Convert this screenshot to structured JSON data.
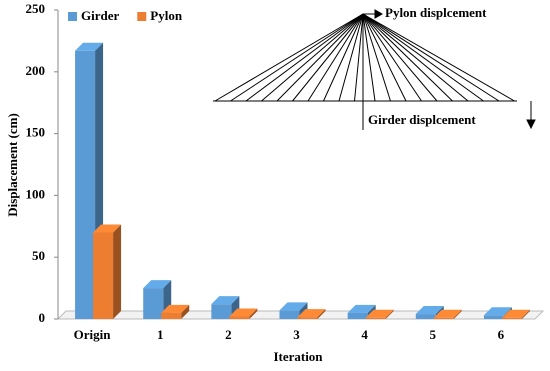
{
  "chart_data": {
    "type": "bar3d",
    "ylabel": "Displacement (cm)",
    "xlabel": "Iteration",
    "categories": [
      "Origin",
      "1",
      "2",
      "3",
      "4",
      "5",
      "6"
    ],
    "series": [
      {
        "name": "Girder",
        "color": "#5b9bd5",
        "values": [
          217,
          25,
          12,
          7,
          5,
          4,
          3
        ]
      },
      {
        "name": "Pylon",
        "color": "#ed7d31",
        "values": [
          70,
          5,
          2,
          1.5,
          1,
          1,
          1
        ]
      }
    ],
    "ylim": [
      0,
      250
    ],
    "yticks": [
      0,
      50,
      100,
      150,
      200,
      250
    ],
    "legend": "upper left",
    "annotations": [
      "Pylon displcement",
      "Girder displcement"
    ]
  }
}
